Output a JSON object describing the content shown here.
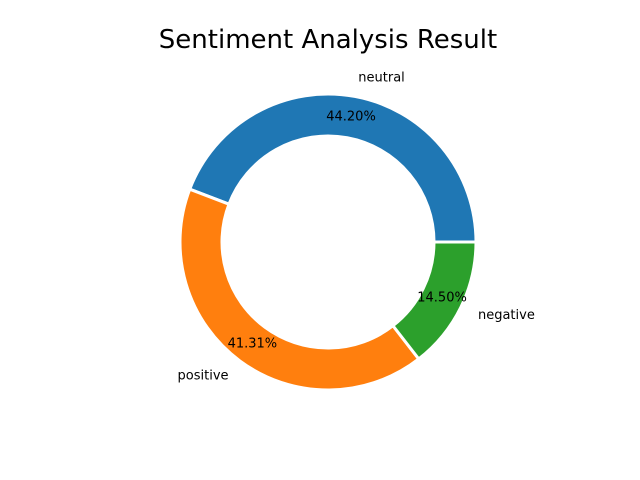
{
  "chart_data": {
    "type": "pie",
    "style": "donut",
    "title": "Sentiment Analysis Result",
    "categories": [
      "neutral",
      "positive",
      "negative"
    ],
    "values": [
      44.2,
      41.31,
      14.5
    ],
    "value_labels": [
      "44.20%",
      "41.31%",
      "14.50%"
    ],
    "colors": [
      "#1f77b4",
      "#ff7f0e",
      "#2ca02c"
    ],
    "start_angle": 0,
    "direction": "counterclockwise",
    "legend": "none"
  }
}
